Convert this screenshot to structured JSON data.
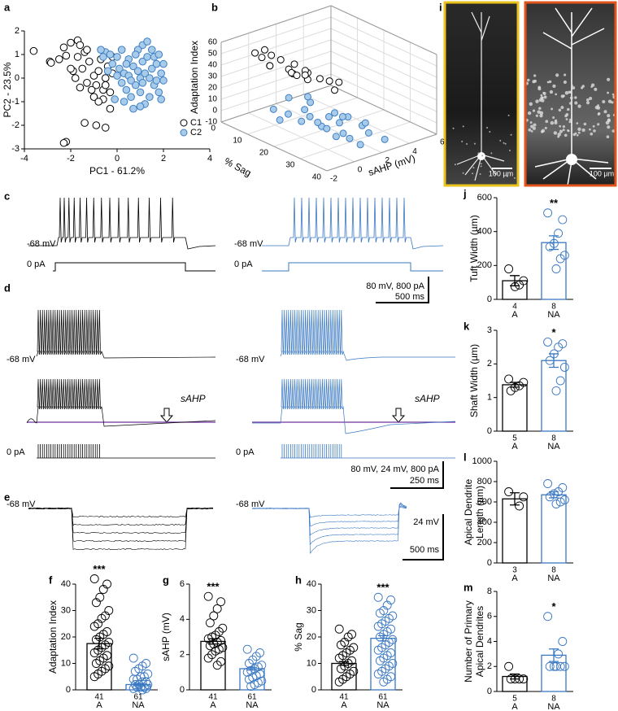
{
  "chart_data": [
    {
      "type": "scatter",
      "panel": "a",
      "xlabel": "PC1 - 61.2%",
      "ylabel": "PC2 - 23.5%",
      "xlim": [
        -4,
        4
      ],
      "xticks": [
        -4,
        -2,
        0,
        2,
        4
      ],
      "ylim": [
        -3,
        2
      ],
      "yticks": [
        -3,
        -2,
        -1,
        0,
        1,
        2
      ],
      "legend": "lower right",
      "series": [
        {
          "name": "C1",
          "color": "#ffffff",
          "edgecolor": "#000000",
          "x": [
            -3.6,
            -2.9,
            -2.85,
            -2.3,
            -2.2,
            -2.0,
            -1.7,
            -1.6,
            -1.4,
            -1.9,
            -1.8,
            -1.5,
            -1.3,
            -1.2,
            -1.0,
            -0.9,
            -0.8,
            -0.6,
            -0.5,
            -0.4,
            -1.0,
            -0.6,
            -1.4,
            -0.9,
            -0.5,
            -2.2,
            -2.3,
            -0.3,
            -1.1,
            -0.3,
            -1.7,
            -0.7,
            -0.2,
            -1.3,
            -2.5,
            -0.5,
            -1.6,
            -0.8,
            -2.0,
            -0.2
          ],
          "y": [
            1.15,
            0.7,
            0.65,
            1.3,
            0.95,
            1.5,
            1.6,
            1.4,
            1.1,
            0.3,
            0.0,
            0.4,
            -0.2,
            0.7,
            0.1,
            -0.3,
            0.3,
            -0.5,
            0.0,
            0.5,
            -0.8,
            -0.9,
            -1.9,
            -2.0,
            -2.1,
            -2.7,
            -2.75,
            -1.3,
            -0.5,
            -0.6,
            0.9,
            0.8,
            0.9,
            1.2,
            0.8,
            -0.3,
            -0.4,
            -1.0,
            0.4,
            0.2
          ]
        },
        {
          "name": "C2",
          "color": "#a9cbea",
          "edgecolor": "#3b7fc4",
          "x": [
            0.1,
            0.3,
            0.5,
            0.7,
            0.9,
            1.1,
            1.3,
            1.5,
            1.7,
            1.9,
            2.0,
            0.2,
            0.4,
            0.6,
            0.8,
            1.0,
            1.2,
            1.4,
            1.6,
            1.8,
            1.1,
            1.3,
            0.9,
            1.5,
            0.0,
            -0.2,
            -0.4,
            -0.1,
            0.3,
            0.7,
            1.0,
            1.2,
            0.5,
            1.6,
            1.8,
            2.0,
            0.2,
            -0.5,
            -0.7,
            -0.3,
            0.8,
            1.4,
            0.6,
            1.9,
            1.1,
            0.4,
            1.0,
            0.0,
            -0.6,
            1.7
          ],
          "y": [
            0.4,
            0.2,
            0.8,
            0.5,
            0.3,
            0.7,
            0.9,
            0.4,
            0.6,
            0.2,
            -0.1,
            -0.2,
            -0.5,
            -0.8,
            -0.3,
            -0.6,
            -1.1,
            -0.8,
            -0.3,
            -0.6,
            1.4,
            1.55,
            1.2,
            1.2,
            0.9,
            0.6,
            0.3,
            -0.9,
            -1.0,
            -1.3,
            0.0,
            0.2,
            0.1,
            0.9,
            1.0,
            0.6,
            1.2,
            1.1,
            1.2,
            1.0,
            1.0,
            0.0,
            -0.1,
            -0.9,
            -0.2,
            0.6,
            -1.2,
            0.1,
            0.9,
            -0.1
          ]
        }
      ]
    },
    {
      "type": "scatter3d",
      "panel": "b",
      "xlabel": "sAHP (mV)",
      "ylabel": "% Sag",
      "zlabel": "Adaptation Index",
      "xlim": [
        -2,
        6
      ],
      "xticks": [
        -2,
        0,
        2,
        4,
        6
      ],
      "ylim": [
        0,
        40
      ],
      "yticks": [
        0,
        10,
        20,
        30,
        40
      ],
      "zlim": [
        -10,
        60
      ],
      "zticks": [
        -10,
        0,
        10,
        20,
        30,
        40,
        50,
        60
      ],
      "series": [
        {
          "color": "#ffffff",
          "edgecolor": "#000000",
          "x": [
            0,
            1,
            2,
            0.5,
            1.5,
            -0.5,
            2.5,
            1,
            3,
            0.2,
            1.8,
            2.2,
            0.8,
            3.5,
            1.2,
            2.8,
            0.4,
            1.6,
            2,
            0
          ],
          "y": [
            8,
            10,
            12,
            6,
            9,
            5,
            14,
            11,
            15,
            7,
            13,
            10,
            8,
            16,
            12,
            18,
            4,
            9,
            11,
            5
          ],
          "z": [
            40,
            35,
            30,
            45,
            28,
            50,
            25,
            33,
            22,
            38,
            26,
            29,
            42,
            20,
            31,
            18,
            48,
            36,
            27,
            44
          ]
        },
        {
          "color": "#a9cbea",
          "edgecolor": "#3b7fc4",
          "x": [
            0,
            1,
            2,
            3,
            0.5,
            1.5,
            2.5,
            -0.5,
            1,
            2,
            3.5,
            0,
            1.2,
            2.2,
            0.8,
            1.8,
            2.8,
            0.3,
            1.4,
            2.6,
            1,
            2,
            -1,
            0.6,
            3
          ],
          "y": [
            15,
            18,
            20,
            22,
            25,
            28,
            30,
            12,
            16,
            24,
            26,
            20,
            32,
            34,
            22,
            14,
            18,
            28,
            35,
            38,
            10,
            12,
            17,
            30,
            20
          ],
          "z": [
            5,
            2,
            0,
            -2,
            3,
            -4,
            1,
            8,
            6,
            -1,
            -5,
            4,
            -3,
            0,
            2,
            7,
            -2,
            5,
            -6,
            -3,
            10,
            9,
            6,
            -1,
            -4
          ]
        }
      ]
    },
    {
      "type": "bar",
      "panel": "f",
      "ylabel": "Adaptation Index",
      "ylim": [
        0,
        40
      ],
      "yticks": [
        0,
        10,
        20,
        30,
        40
      ],
      "categories": [
        "A",
        "NA"
      ],
      "n": [
        41,
        61
      ],
      "values": [
        17.5,
        2
      ],
      "errors": [
        2,
        0.4
      ],
      "colors": [
        "#000000",
        "#3a78c2"
      ],
      "significance": [
        "***",
        null
      ],
      "points": [
        [
          42,
          40,
          38,
          35,
          33,
          30,
          28,
          27,
          25,
          24,
          22,
          21,
          20,
          19,
          18,
          17,
          16,
          15,
          14,
          13,
          12,
          11,
          10,
          9,
          8,
          7,
          6,
          5
        ],
        [
          12,
          10,
          9,
          8,
          7,
          6,
          5,
          5,
          4,
          4,
          3,
          3,
          2,
          2,
          2,
          1,
          1,
          1,
          0.5,
          0.5,
          0
        ]
      ]
    },
    {
      "type": "bar",
      "panel": "g",
      "ylabel": "sAHP (mV)",
      "ylim": [
        0,
        6
      ],
      "yticks": [
        0,
        2,
        4,
        6
      ],
      "categories": [
        "A",
        "NA"
      ],
      "n": [
        41,
        61
      ],
      "values": [
        2.75,
        1.2
      ],
      "errors": [
        0.15,
        0.08
      ],
      "colors": [
        "#000000",
        "#3a78c2"
      ],
      "significance": [
        "***",
        null
      ],
      "points": [
        [
          5.3,
          5,
          4.6,
          4.2,
          3.8,
          3.5,
          3.3,
          3.1,
          3,
          2.9,
          2.8,
          2.7,
          2.6,
          2.5,
          2.4,
          2.3,
          2.2,
          2,
          1.8,
          1.6,
          1.4
        ],
        [
          2.3,
          2.1,
          1.9,
          1.7,
          1.5,
          1.4,
          1.3,
          1.2,
          1.1,
          1,
          0.9,
          0.8,
          0.7,
          0.6,
          0.5,
          0.4,
          0.3,
          0.2
        ]
      ]
    },
    {
      "type": "bar",
      "panel": "h",
      "ylabel": "% Sag",
      "ylim": [
        0,
        40
      ],
      "yticks": [
        0,
        10,
        20,
        30,
        40
      ],
      "categories": [
        "A",
        "NA"
      ],
      "n": [
        41,
        61
      ],
      "values": [
        10,
        19.5
      ],
      "errors": [
        0.7,
        1
      ],
      "colors": [
        "#000000",
        "#3a78c2"
      ],
      "significance": [
        null,
        "***"
      ],
      "points": [
        [
          23,
          21,
          20,
          18,
          17,
          16,
          15,
          14,
          13,
          12,
          11,
          10,
          9,
          8,
          7,
          6,
          5,
          4,
          3
        ],
        [
          35,
          34,
          32,
          30,
          29,
          28,
          27,
          26,
          25,
          24,
          23,
          22,
          21,
          20,
          19,
          18,
          17,
          16,
          15,
          14,
          13,
          12,
          11,
          10,
          9,
          8,
          7,
          6,
          5,
          4,
          3
        ]
      ]
    },
    {
      "type": "bar",
      "panel": "j",
      "ylabel": "Tuft Width (µm)",
      "ylim": [
        0,
        600
      ],
      "yticks": [
        0,
        200,
        400,
        600
      ],
      "categories": [
        "A",
        "NA"
      ],
      "n": [
        4,
        8
      ],
      "values": [
        110,
        335
      ],
      "errors": [
        30,
        40
      ],
      "colors": [
        "#000000",
        "#3a78c2"
      ],
      "significance": [
        null,
        "**"
      ],
      "points": [
        [
          180,
          110,
          85,
          75
        ],
        [
          510,
          470,
          390,
          330,
          310,
          260,
          240,
          180
        ]
      ]
    },
    {
      "type": "bar",
      "panel": "k",
      "ylabel": "Shaft Width (µm)",
      "ylim": [
        0,
        3
      ],
      "yticks": [
        0,
        1,
        2,
        3
      ],
      "categories": [
        "A",
        "NA"
      ],
      "n": [
        5,
        8
      ],
      "values": [
        1.38,
        2.1
      ],
      "errors": [
        0.07,
        0.2
      ],
      "colors": [
        "#000000",
        "#3a78c2"
      ],
      "significance": [
        null,
        "*"
      ],
      "points": [
        [
          1.55,
          1.45,
          1.35,
          1.3,
          1.2
        ],
        [
          2.65,
          2.6,
          2.5,
          2.3,
          2.1,
          1.9,
          1.5,
          1.2
        ]
      ]
    },
    {
      "type": "bar",
      "panel": "l",
      "ylabel": [
        "Apical Dendrite",
        "Length (µm)"
      ],
      "ylim": [
        0,
        1000
      ],
      "yticks": [
        0,
        200,
        400,
        600,
        800,
        1000
      ],
      "categories": [
        "A",
        "NA"
      ],
      "n": [
        3,
        8
      ],
      "values": [
        630,
        670
      ],
      "errors": [
        60,
        30
      ],
      "colors": [
        "#000000",
        "#3a78c2"
      ],
      "significance": [
        null,
        null
      ],
      "points": [
        [
          700,
          650,
          560
        ],
        [
          780,
          740,
          700,
          680,
          650,
          620,
          600,
          580
        ]
      ]
    },
    {
      "type": "bar",
      "panel": "m",
      "ylabel": [
        "Number of Primary",
        "Apical Dendrites"
      ],
      "ylim": [
        0,
        8
      ],
      "yticks": [
        0,
        2,
        4,
        6,
        8
      ],
      "categories": [
        "A",
        "NA"
      ],
      "n": [
        5,
        8
      ],
      "values": [
        1.2,
        2.9
      ],
      "errors": [
        0.2,
        0.5
      ],
      "colors": [
        "#000000",
        "#3a78c2"
      ],
      "significance": [
        null,
        "*"
      ],
      "points": [
        [
          2,
          1,
          1,
          1,
          1
        ],
        [
          6,
          4,
          3,
          2,
          2,
          2,
          2,
          2
        ]
      ]
    }
  ],
  "traces": {
    "c": {
      "panel": "c",
      "left_potential": "-68 mV",
      "left_current": "0 pA",
      "right_potential": "-68 mV",
      "right_current": "0 pA",
      "scale_y": "80 mV,  800 pA",
      "scale_x": "500 ms"
    },
    "d": {
      "panel": "d",
      "left_potential": "-68 mV",
      "left_current": "0 pA",
      "right_potential": "-68 mV",
      "right_current": "0 pA",
      "left_sahp": "sAHP",
      "right_sahp": "sAHP",
      "scale_y": "80 mV, 24 mV, 800 pA",
      "scale_x": "250 ms"
    },
    "e": {
      "panel": "e",
      "left_potential": "-68 mV",
      "right_potential": "-68 mV",
      "scale_y": "24 mV",
      "scale_x": "500 ms"
    }
  },
  "images": {
    "panel": "i",
    "left_scale": "100 µm",
    "right_scale": "100 µm"
  }
}
